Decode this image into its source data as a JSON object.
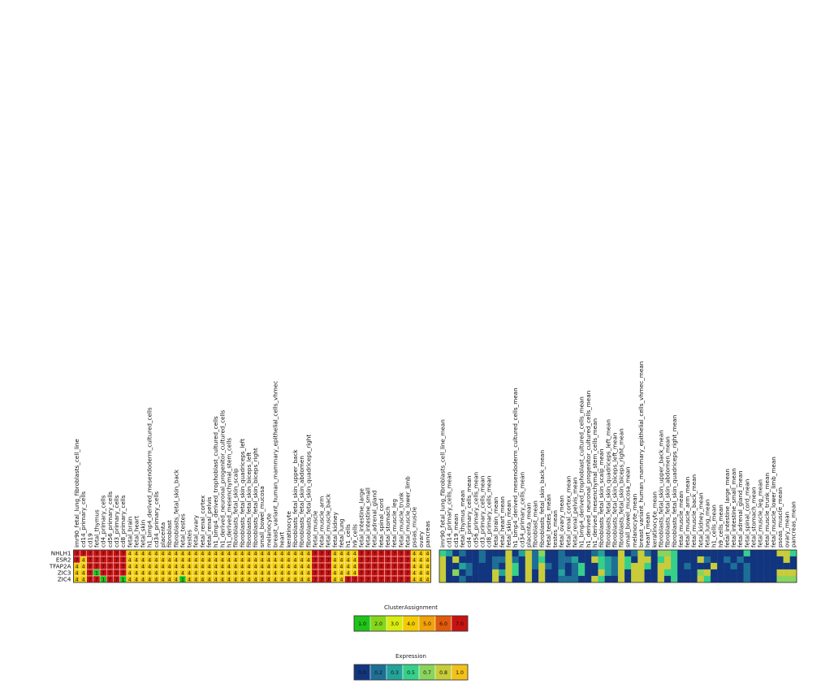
{
  "chart_data": {
    "type": "heatmap",
    "rows": [
      "NHLH1",
      "ESR2",
      "TFAP2A",
      "ZIC3",
      "ZIC4"
    ],
    "cluster_columns": [
      "imr90_fetal_lung_fibroblasts_cell_line",
      "cd14_primary_cells",
      "cd19",
      "fetal_thymus",
      "cd4_primary_cells",
      "cd56_primary_cells",
      "cd3_primary_cells",
      "cd8_primary_cells",
      "fetal_brain",
      "fetal_heart",
      "fetal_skin",
      "h1_bmp4_derived_mesendoderm_cultured_cells",
      "cd34_primary_cells",
      "placenta",
      "fibroblast",
      "fibroblasts_fetal_skin_back",
      "fetal_testes",
      "testes",
      "fetal_ovary",
      "fetal_renal_cortex",
      "fetal_renal_pelvis",
      "h1_bmp4_derived_trophoblast_cultured_cells",
      "h1_derived_neuronal_progenitor_cultured_cells",
      "h1_derived_mesenchymal_stem_cells",
      "fibroblasts_fetal_skin_scalp",
      "fibroblasts_fetal_skin_quadriceps_left",
      "fibroblasts_fetal_skin_biceps_left",
      "fibroblasts_fetal_skin_biceps_right",
      "small_bowel_mucosa",
      "melanocyte",
      "breast_variant_human_mammary_epithelial_cells_vhmec",
      "heart",
      "keratinocyte",
      "fibroblasts_fetal_skin_upper_back",
      "fibroblasts_fetal_skin_abdomen",
      "fibroblasts_fetal_skin_quadriceps_right",
      "fetal_muscle",
      "fetal_muscle_arm",
      "fetal_muscle_back",
      "fetal_kidney",
      "fetal_lung",
      "h1_cells",
      "h9_cells",
      "fetal_intestine_large",
      "fetal_intestine_small",
      "fetal_adrenal_gland",
      "fetal_spinal_cord",
      "fetal_stomach",
      "fetal_muscle_leg",
      "fetal_muscle_trunk",
      "fetal_muscle_lower_limb",
      "psoas_muscle",
      "ovary",
      "pancreas"
    ],
    "cluster_values": [
      [
        7,
        7,
        7,
        7,
        7,
        7,
        7,
        7,
        4,
        4,
        4,
        4,
        4,
        4,
        4,
        4,
        4,
        4,
        4,
        4,
        4,
        4,
        4,
        4,
        4,
        4,
        4,
        4,
        4,
        4,
        4,
        4,
        4,
        4,
        4,
        4,
        7,
        7,
        7,
        4,
        4,
        4,
        4,
        7,
        7,
        7,
        7,
        7,
        7,
        7,
        7,
        4,
        4,
        4
      ],
      [
        7,
        4,
        7,
        7,
        7,
        7,
        7,
        7,
        4,
        4,
        4,
        4,
        4,
        4,
        4,
        4,
        4,
        4,
        4,
        4,
        4,
        4,
        4,
        4,
        4,
        4,
        4,
        4,
        4,
        4,
        4,
        4,
        4,
        4,
        4,
        4,
        7,
        7,
        7,
        4,
        4,
        4,
        4,
        7,
        7,
        7,
        7,
        7,
        7,
        7,
        7,
        4,
        4,
        4
      ],
      [
        4,
        4,
        7,
        7,
        7,
        7,
        7,
        7,
        4,
        4,
        4,
        4,
        4,
        4,
        4,
        4,
        4,
        4,
        4,
        4,
        4,
        4,
        4,
        4,
        4,
        4,
        4,
        4,
        4,
        4,
        4,
        4,
        4,
        4,
        4,
        4,
        7,
        7,
        7,
        4,
        4,
        4,
        4,
        7,
        7,
        7,
        7,
        7,
        7,
        7,
        7,
        4,
        4,
        4
      ],
      [
        4,
        4,
        7,
        1,
        7,
        7,
        7,
        7,
        4,
        4,
        4,
        4,
        4,
        4,
        4,
        4,
        4,
        4,
        4,
        4,
        4,
        4,
        4,
        4,
        4,
        4,
        4,
        4,
        4,
        4,
        4,
        4,
        4,
        4,
        4,
        4,
        7,
        7,
        7,
        4,
        4,
        4,
        4,
        7,
        7,
        7,
        7,
        7,
        7,
        7,
        7,
        4,
        4,
        4
      ],
      [
        4,
        4,
        7,
        7,
        1,
        7,
        7,
        1,
        4,
        4,
        4,
        4,
        4,
        4,
        4,
        4,
        1,
        4,
        4,
        4,
        4,
        4,
        4,
        4,
        4,
        4,
        4,
        4,
        4,
        4,
        4,
        4,
        4,
        4,
        4,
        4,
        7,
        7,
        7,
        4,
        4,
        7,
        7,
        7,
        7,
        7,
        7,
        7,
        7,
        7,
        7,
        4,
        4,
        4
      ]
    ],
    "expression_columns": [
      "imr90_fetal_lung_fibroblasts_cell_line_mean",
      "cd14_primary_cells_mean",
      "cd19_mean",
      "fetal_thymus_mean",
      "cd4_primary_cells_mean",
      "cd56_primary_cells_mean",
      "cd3_primary_cells_mean",
      "cd8_primary_cells_mean",
      "fetal_brain_mean",
      "fetal_heart_mean",
      "fetal_skin_mean",
      "h1_bmp4_derived_mesendoderm_cultured_cells_mean",
      "cd34_primary_cells_mean",
      "placenta_mean",
      "fibroblast_mean",
      "fibroblasts_fetal_skin_back_mean",
      "fetal_testes_mean",
      "testes_mean",
      "fetal_ovary_mean",
      "fetal_renal_cortex_mean",
      "fetal_renal_pelvis_mean",
      "h1_bmp4_derived_trophoblast_cultured_cells_mean",
      "h1_derived_neuronal_progenitor_cultured_cells_mean",
      "h1_derived_mesenchymal_stem_cells_mean",
      "fibroblasts_fetal_skin_scalp_mean",
      "fibroblasts_fetal_skin_quadriceps_left_mean",
      "fibroblasts_fetal_skin_biceps_left_mean",
      "fibroblasts_fetal_skin_biceps_right_mean",
      "small_bowel_mucosa_mean",
      "melanocyte_mean",
      "breast_variant_human_mammary_epithelial_cells_vhmec_mean",
      "heart_mean",
      "keratinocyte_mean",
      "fibroblasts_fetal_skin_upper_back_mean",
      "fibroblasts_fetal_skin_abdomen_mean",
      "fibroblasts_fetal_skin_quadriceps_right_mean",
      "fetal_muscle_mean",
      "fetal_muscle_arm_mean",
      "fetal_muscle_back_mean",
      "fetal_kidney_mean",
      "fetal_lung_mean",
      "h1_cells_mean",
      "h9_cells_mean",
      "fetal_intestine_large_mean",
      "fetal_intestine_small_mean",
      "fetal_adrenal_gland_mean",
      "fetal_spinal_cord_mean",
      "fetal_stomach_mean",
      "fetal_muscle_leg_mean",
      "fetal_muscle_trunk_mean",
      "fetal_muscle_lower_limb_mean",
      "psoas_muscle_mean",
      "ovary_mean",
      "pancreas_mean"
    ],
    "expression_values": [
      [
        0.5,
        0.3,
        0.1,
        0.2,
        0.1,
        0.1,
        0.2,
        0.1,
        0.1,
        0.1,
        0.9,
        0.1,
        0.3,
        0.8,
        0.2,
        0.7,
        0.1,
        0.1,
        0.2,
        0.1,
        0.1,
        0.1,
        0.1,
        0.2,
        0.3,
        0.1,
        0.1,
        0.8,
        0.1,
        0.2,
        0.8,
        0.2,
        0.1,
        0.7,
        0.7,
        0.6,
        0.1,
        0.1,
        0.1,
        0.1,
        0.1,
        0.1,
        0.1,
        0.1,
        0.1,
        0.1,
        0.5,
        0.1,
        0.1,
        0.1,
        0.1,
        0.8,
        0.8,
        0.4
      ],
      [
        0.8,
        0.1,
        0.8,
        0.1,
        0.1,
        0.1,
        0.2,
        0.1,
        0.2,
        0.2,
        0.8,
        0.2,
        0.1,
        0.8,
        0.2,
        0.6,
        0.1,
        0.1,
        0.2,
        0.2,
        0.3,
        0.1,
        0.1,
        0.8,
        0.4,
        0.3,
        0.2,
        0.9,
        0.5,
        0.1,
        0.8,
        0.8,
        0.1,
        0.5,
        0.8,
        0.4,
        0.1,
        0.1,
        0.1,
        0.8,
        0.2,
        0.1,
        0.1,
        0.2,
        0.1,
        0.2,
        0.1,
        0.1,
        0.1,
        0.1,
        0.1,
        0.1,
        0.8,
        0.1
      ],
      [
        0.9,
        0.1,
        0.1,
        0.3,
        0.2,
        0.1,
        0.1,
        0.1,
        0.2,
        0.1,
        0.9,
        0.5,
        0.1,
        0.9,
        0.2,
        0.9,
        0.2,
        0.1,
        0.2,
        0.1,
        0.2,
        0.5,
        0.1,
        0.1,
        0.4,
        0.3,
        0.2,
        0.8,
        0.5,
        0.8,
        0.8,
        0.4,
        0.1,
        0.8,
        0.8,
        0.6,
        0.1,
        0.2,
        0.1,
        0.1,
        0.1,
        0.8,
        0.1,
        0.1,
        0.2,
        0.1,
        0.2,
        0.1,
        0.1,
        0.1,
        0.1,
        0.1,
        0.1,
        0.1
      ],
      [
        0.8,
        0.1,
        0.7,
        0.1,
        0.2,
        0.1,
        0.1,
        0.1,
        0.9,
        0.3,
        0.9,
        0.5,
        0.1,
        0.8,
        0.1,
        0.8,
        0.1,
        0.1,
        0.3,
        0.1,
        0.2,
        0.5,
        0.1,
        0.1,
        0.9,
        0.3,
        0.2,
        0.9,
        0.1,
        0.8,
        0.9,
        0.1,
        0.1,
        0.8,
        0.6,
        0.5,
        0.1,
        0.1,
        0.1,
        0.7,
        0.8,
        0.1,
        0.1,
        0.1,
        0.1,
        0.1,
        0.2,
        0.1,
        0.1,
        0.1,
        0.1,
        0.8,
        0.8,
        0.8
      ],
      [
        0.8,
        0.1,
        0.1,
        0.2,
        0.1,
        0.1,
        0.1,
        0.1,
        0.9,
        0.1,
        0.9,
        0.1,
        0.1,
        0.8,
        0.1,
        0.8,
        0.1,
        0.1,
        0.2,
        0.2,
        0.2,
        0.1,
        0.1,
        0.8,
        0.4,
        0.1,
        0.1,
        0.8,
        0.1,
        0.8,
        0.8,
        0.1,
        0.1,
        0.8,
        0.1,
        0.5,
        0.1,
        0.1,
        0.1,
        0.8,
        0.6,
        0.1,
        0.1,
        0.1,
        0.1,
        0.1,
        0.2,
        0.1,
        0.1,
        0.1,
        0.1,
        0.7,
        0.7,
        0.7
      ]
    ],
    "cluster_legend": {
      "title": "ClusterAssignment",
      "labels": [
        "1.0",
        "2.0",
        "3.0",
        "4.0",
        "5.0",
        "6.0",
        "7.0"
      ],
      "colors": [
        "#1fc41a",
        "#84d61a",
        "#d9eb10",
        "#f2cb05",
        "#f0a20a",
        "#e05a0c",
        "#c81212"
      ]
    },
    "expression_legend": {
      "title": "Expression",
      "labels": [
        "0.0",
        "0.2",
        "0.3",
        "0.5",
        "0.7",
        "0.8",
        "1.0"
      ],
      "values": [
        0.0,
        0.2,
        0.3,
        0.5,
        0.7,
        0.8,
        1.0
      ],
      "colors": [
        "#12357f",
        "#1d6f96",
        "#24a39a",
        "#35d08a",
        "#8ad45e",
        "#c8cc3a",
        "#f2c21a"
      ]
    }
  }
}
